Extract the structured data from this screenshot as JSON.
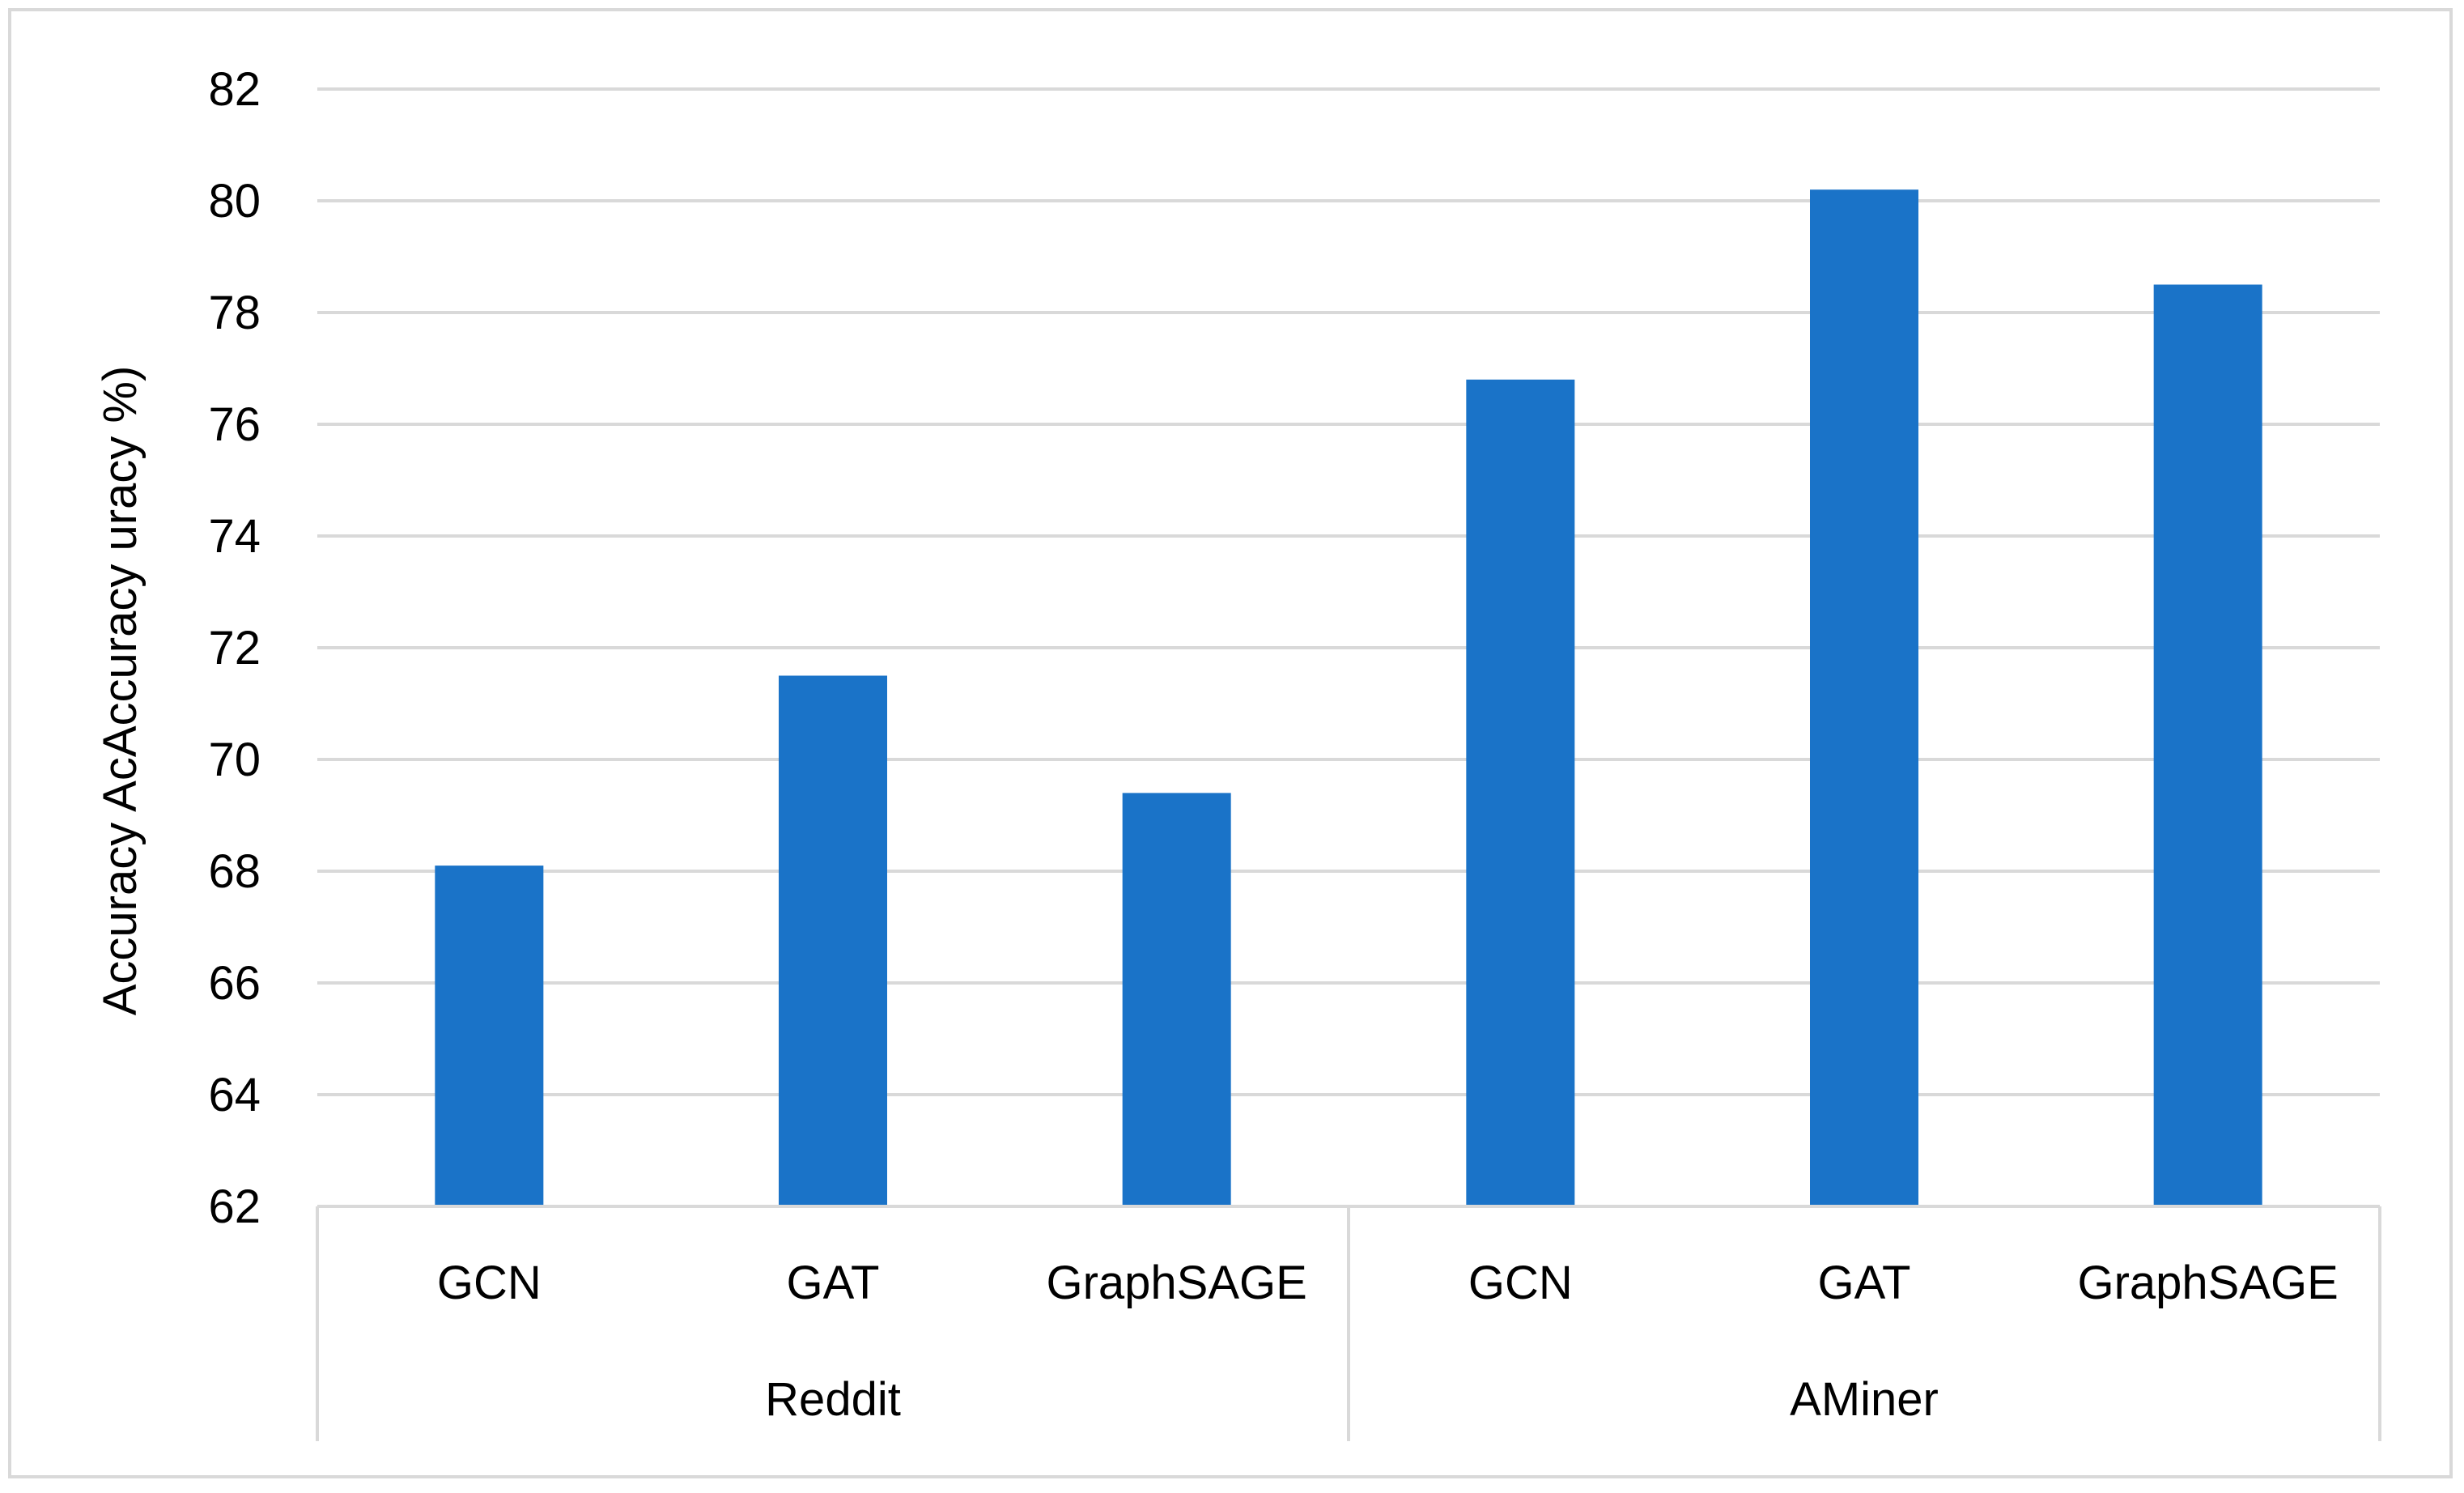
{
  "chart_data": {
    "type": "bar",
    "title": "",
    "xlabel": "",
    "ylabel": "Accuracy AcAccuracy uracy %)",
    "ylim": [
      62,
      82
    ],
    "yticks": [
      62,
      64,
      66,
      68,
      70,
      72,
      74,
      76,
      78,
      80,
      82
    ],
    "grid": true,
    "legend": "none",
    "bar_color": "#1a73c8",
    "groups": [
      {
        "name": "Reddit",
        "categories": [
          "GCN",
          "GAT",
          "GraphSAGE"
        ],
        "values": [
          68.1,
          71.5,
          69.4
        ]
      },
      {
        "name": "AMiner",
        "categories": [
          "GCN",
          "GAT",
          "GraphSAGE"
        ],
        "values": [
          76.8,
          80.2,
          78.5
        ]
      }
    ]
  }
}
